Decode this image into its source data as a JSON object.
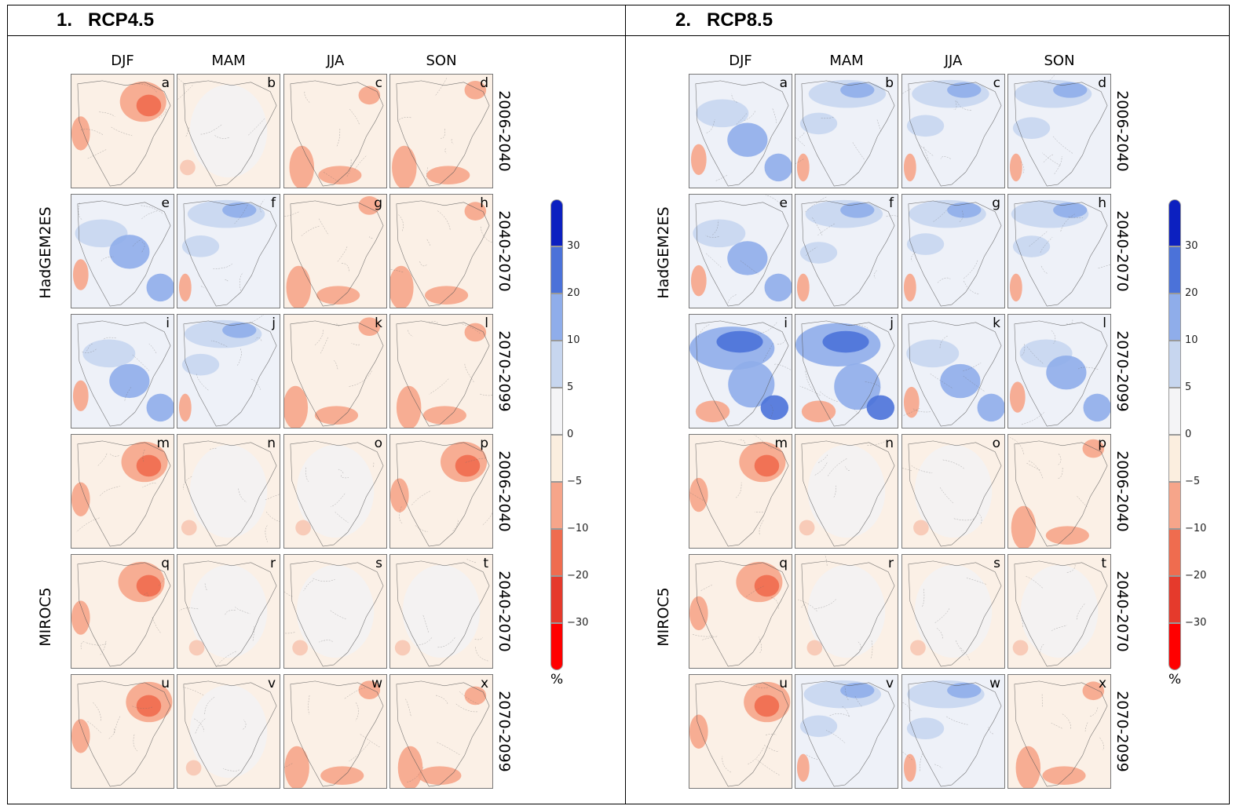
{
  "panels": [
    {
      "title": "1.   RCP4.5"
    },
    {
      "title": "2.   RCP8.5"
    }
  ],
  "seasons": [
    "DJF",
    "MAM",
    "JJA",
    "SON"
  ],
  "models": [
    "HadGEM2ES",
    "MIROC5"
  ],
  "periods": [
    "2006-2040",
    "2040-2070",
    "2070-2099",
    "2006-2040",
    "2040-2070",
    "2070-2099"
  ],
  "letters": [
    "a",
    "b",
    "c",
    "d",
    "e",
    "f",
    "g",
    "h",
    "i",
    "j",
    "k",
    "l",
    "m",
    "n",
    "o",
    "p",
    "q",
    "r",
    "s",
    "t",
    "u",
    "v",
    "w",
    "x"
  ],
  "chart_data": {
    "type": "heatmap",
    "colorbar": {
      "unit": "%",
      "tick_labels": [
        "30",
        "20",
        "10",
        "5",
        "0",
        "−5",
        "−10",
        "−20",
        "−30"
      ],
      "colors": [
        "#0c20c0",
        "#4b72d9",
        "#8fadea",
        "#c7d6ef",
        "#f4f4f6",
        "#fbeedf",
        "#f6a58a",
        "#ef6c4f",
        "#e53a2c",
        "#ff0000"
      ]
    },
    "maps": {
      "rcp45": [
        "warm-ne",
        "neutral",
        "warm-s",
        "warm-s",
        "cool-c",
        "cool-n",
        "warm-s",
        "warm-s",
        "cool-c",
        "cool-n",
        "warm-s",
        "warm-s",
        "warm-ne",
        "neutral",
        "neutral",
        "warm-ne",
        "warm-ne",
        "neutral",
        "neutral",
        "neutral",
        "warm-ne",
        "neutral",
        "warm-s",
        "warm-s"
      ],
      "rcp85": [
        "cool-c",
        "cool-n",
        "cool-n",
        "cool-n",
        "cool-c",
        "cool-n",
        "cool-n",
        "cool-n",
        "cool-strong",
        "cool-strong",
        "cool-c",
        "cool-c",
        "warm-ne",
        "neutral",
        "neutral",
        "warm-s",
        "warm-ne",
        "neutral",
        "neutral",
        "neutral",
        "warm-ne",
        "cool-n",
        "cool-n",
        "warm-s"
      ]
    }
  }
}
